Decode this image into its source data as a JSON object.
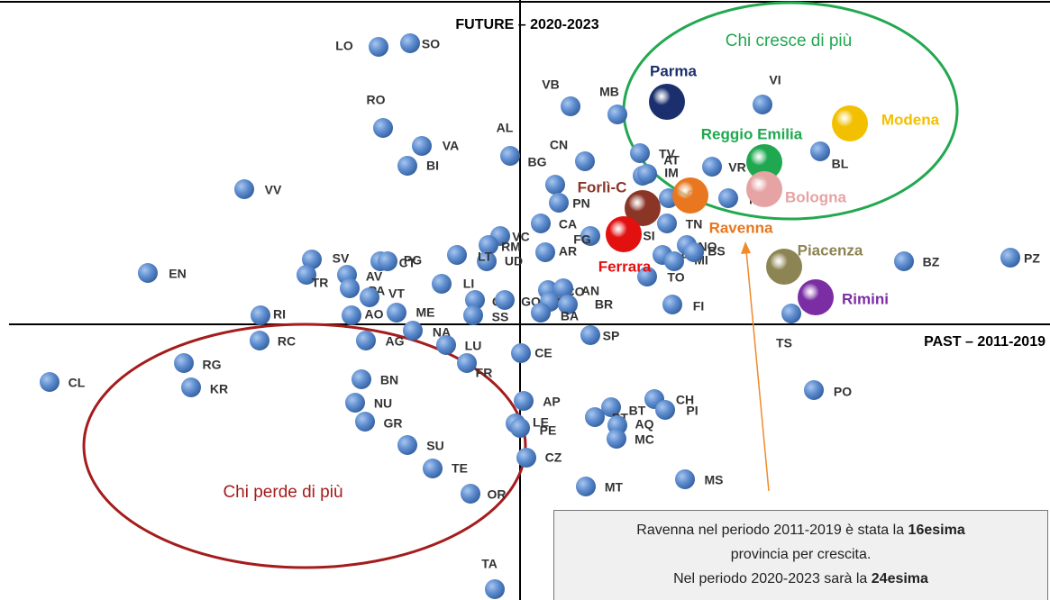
{
  "axis_future": "FUTURE – 2020-2023",
  "axis_past": "PAST – 2011-2019",
  "group_up": "Chi cresce di più",
  "group_down": "Chi perde di più",
  "points": [
    "LO",
    "SO",
    "RO",
    "VA",
    "BI",
    "VV",
    "AL",
    "BG",
    "VB",
    "MB",
    "CN",
    "TV",
    "AT",
    "IM",
    "PN",
    "CA",
    "VC",
    "RM",
    "UD",
    "AR",
    "FG",
    "SI",
    "LT",
    "CO",
    "SR",
    "CT",
    "PG",
    "SV",
    "TR",
    "AV",
    "PA",
    "VT",
    "EN",
    "LI",
    "GE",
    "GO",
    "AN",
    "BR",
    "BA",
    "SS",
    "ME",
    "AO",
    "RI",
    "RC",
    "AG",
    "NA",
    "LU",
    "FR",
    "CE",
    "SP",
    "FI",
    "TO",
    "LC",
    "MI",
    "NO",
    "BS",
    "CR",
    "TN",
    "VR",
    "MN",
    "VI",
    "BL",
    "BZ",
    "PZ",
    "TS",
    "PO",
    "CL",
    "RG",
    "KR",
    "BN",
    "NU",
    "GR",
    "SU",
    "TE",
    "OR",
    "AP",
    "LE",
    "PE",
    "CZ",
    "MT",
    "MS",
    "BT",
    "PT",
    "AQ",
    "MC",
    "CH",
    "PI",
    "TA"
  ],
  "highlights": [
    {
      "label": "Parma",
      "color": "#1b2f6e"
    },
    {
      "label": "Modena",
      "color": "#f2c000"
    },
    {
      "label": "Reggio Emilia",
      "color": "#1fa84f"
    },
    {
      "label": "Bologna",
      "color": "#e6a3a3"
    },
    {
      "label": "Forlì-C",
      "color": "#8a3526"
    },
    {
      "label": "Ravenna",
      "color": "#e8771f"
    },
    {
      "label": "Ferrara",
      "color": "#e31010"
    },
    {
      "label": "Piacenza",
      "color": "#8d8453"
    },
    {
      "label": "Rimini",
      "color": "#7b2ea3"
    }
  ],
  "note": {
    "line1": "Ravenna nel periodo 2011-2019 è stata la ",
    "line1_bold": "16esima",
    "line2": "provincia per crescita.",
    "line3": "Nel periodo 2020-2023 sarà la ",
    "line3_bold": "24esima"
  }
}
